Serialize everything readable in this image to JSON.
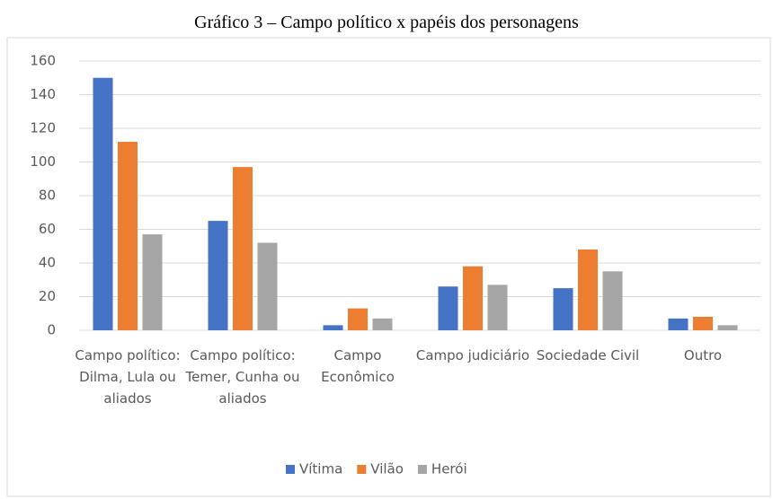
{
  "chart_data": {
    "type": "bar",
    "title": "Gráfico 3 – Campo político x papéis dos personagens",
    "categories": [
      "Campo político: Dilma, Lula ou aliados",
      "Campo político: Temer, Cunha ou aliados",
      "Campo Econômico",
      "Campo judiciário",
      "Sociedade Civil",
      "Outro"
    ],
    "series": [
      {
        "name": "Vítima",
        "color": "#4472c4",
        "values": [
          150,
          65,
          3,
          26,
          25,
          7
        ]
      },
      {
        "name": "Vilão",
        "color": "#ed7d31",
        "values": [
          112,
          97,
          13,
          38,
          48,
          8
        ]
      },
      {
        "name": "Herói",
        "color": "#a5a5a5",
        "values": [
          57,
          52,
          7,
          27,
          35,
          3
        ]
      }
    ],
    "ylim": [
      0,
      160
    ],
    "yticks": [
      0,
      20,
      40,
      60,
      80,
      100,
      120,
      140,
      160
    ],
    "grid": true,
    "legend": "bottom"
  }
}
